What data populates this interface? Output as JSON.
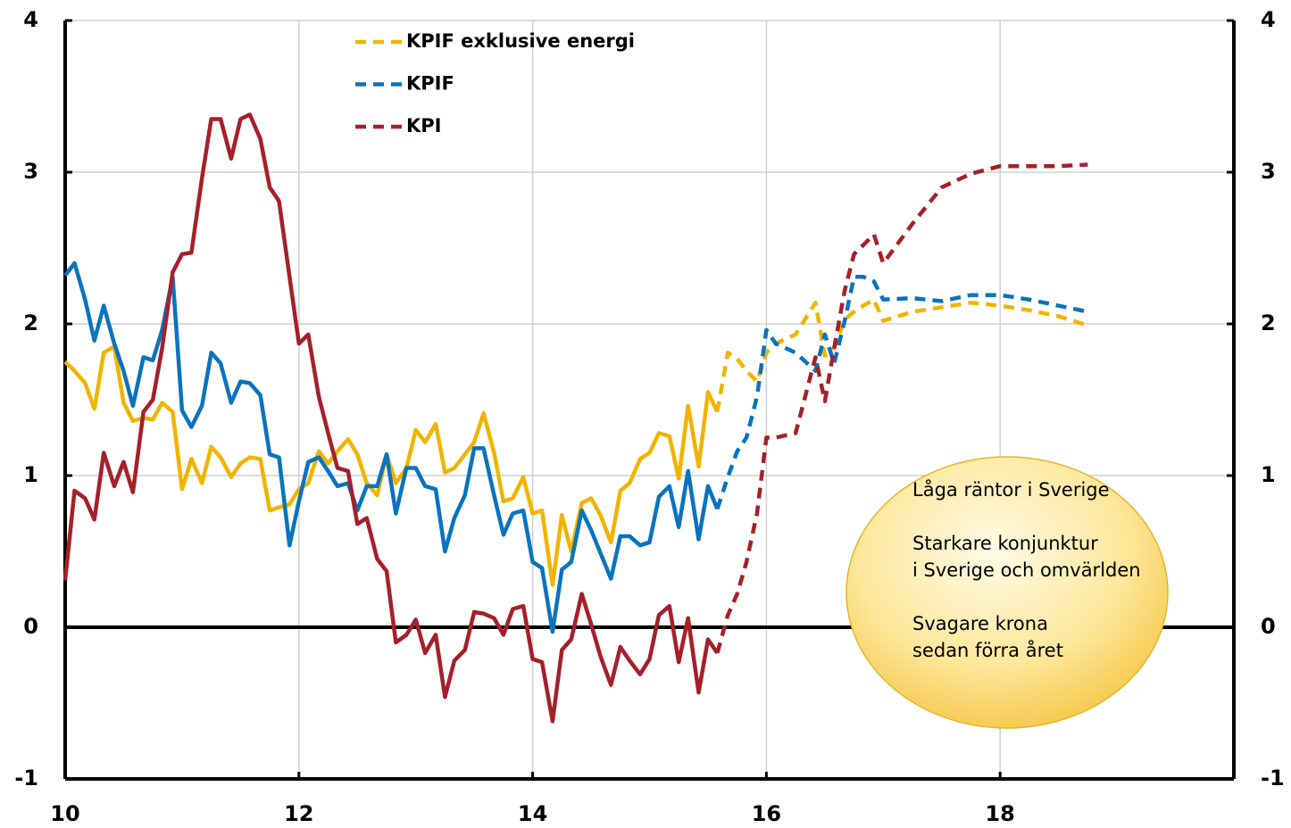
{
  "chart_data": {
    "type": "line",
    "xlim": [
      10,
      20
    ],
    "xticks": [
      10,
      12,
      14,
      16,
      18
    ],
    "ylim": [
      -1,
      4
    ],
    "yticks": [
      -1,
      0,
      1,
      2,
      3,
      4
    ],
    "y2lim": [
      -1,
      4
    ],
    "y2ticks": [
      -1,
      0,
      1,
      2,
      3,
      4
    ],
    "grid": true,
    "dashed_from": 15.58,
    "x": [
      10,
      10.08,
      10.17,
      10.25,
      10.33,
      10.42,
      10.5,
      10.58,
      10.67,
      10.75,
      10.83,
      10.92,
      11,
      11.08,
      11.17,
      11.25,
      11.33,
      11.42,
      11.5,
      11.58,
      11.67,
      11.75,
      11.83,
      11.92,
      12,
      12.08,
      12.17,
      12.25,
      12.33,
      12.42,
      12.5,
      12.58,
      12.67,
      12.75,
      12.83,
      12.92,
      13,
      13.08,
      13.17,
      13.25,
      13.33,
      13.42,
      13.5,
      13.58,
      13.67,
      13.75,
      13.83,
      13.92,
      14,
      14.08,
      14.17,
      14.25,
      14.33,
      14.42,
      14.5,
      14.58,
      14.67,
      14.75,
      14.83,
      14.92,
      15,
      15.08,
      15.17,
      15.25,
      15.33,
      15.42,
      15.5,
      15.58,
      15.67,
      15.75,
      15.83,
      15.92,
      16,
      16.08,
      16.25,
      16.42,
      16.5,
      16.58,
      16.67,
      16.75,
      16.83,
      16.92,
      17,
      17.25,
      17.5,
      17.75,
      18,
      18.25,
      18.5,
      18.75
    ],
    "series": [
      {
        "name": "KPIF exklusive energi",
        "color": "#f0b400",
        "values": [
          1.75,
          1.69,
          1.61,
          1.44,
          1.81,
          1.85,
          1.48,
          1.36,
          1.38,
          1.37,
          1.48,
          1.42,
          0.91,
          1.11,
          0.95,
          1.19,
          1.12,
          0.99,
          1.08,
          1.12,
          1.11,
          0.77,
          0.79,
          0.81,
          0.91,
          0.95,
          1.16,
          1.08,
          1.16,
          1.24,
          1.14,
          0.95,
          0.87,
          1.14,
          0.95,
          1.05,
          1.3,
          1.22,
          1.34,
          1.02,
          1.05,
          1.14,
          1.22,
          1.41,
          1.15,
          0.83,
          0.85,
          0.99,
          0.75,
          0.77,
          0.28,
          0.74,
          0.5,
          0.82,
          0.85,
          0.74,
          0.56,
          0.9,
          0.95,
          1.11,
          1.15,
          1.28,
          1.26,
          0.98,
          1.46,
          1.06,
          1.55,
          1.42,
          1.81,
          1.77,
          1.69,
          1.62,
          1.81,
          1.87,
          1.93,
          2.14,
          1.79,
          1.84,
          2.03,
          2.08,
          2.12,
          2.16,
          2.02,
          2.08,
          2.11,
          2.14,
          2.12,
          2.09,
          2.05,
          1.99
        ]
      },
      {
        "name": "KPIF",
        "color": "#0a73be",
        "values": [
          2.32,
          2.4,
          2.16,
          1.89,
          2.12,
          1.87,
          1.69,
          1.46,
          1.78,
          1.76,
          1.96,
          2.31,
          1.43,
          1.32,
          1.46,
          1.81,
          1.74,
          1.48,
          1.62,
          1.61,
          1.53,
          1.14,
          1.12,
          0.54,
          0.83,
          1.09,
          1.12,
          1.03,
          0.93,
          0.95,
          0.77,
          0.93,
          0.93,
          1.14,
          0.75,
          1.05,
          1.05,
          0.93,
          0.91,
          0.5,
          0.72,
          0.87,
          1.18,
          1.18,
          0.87,
          0.61,
          0.75,
          0.77,
          0.43,
          0.39,
          -0.03,
          0.38,
          0.43,
          0.77,
          0.64,
          0.49,
          0.32,
          0.6,
          0.6,
          0.54,
          0.56,
          0.86,
          0.93,
          0.66,
          1.03,
          0.58,
          0.93,
          0.78,
          0.99,
          1.16,
          1.25,
          1.52,
          1.96,
          1.87,
          1.81,
          1.69,
          1.93,
          1.74,
          2.02,
          2.31,
          2.31,
          2.28,
          2.16,
          2.17,
          2.15,
          2.19,
          2.19,
          2.16,
          2.12,
          2.08
        ]
      },
      {
        "name": "KPI",
        "color": "#a5202a",
        "values": [
          0.31,
          0.9,
          0.85,
          0.71,
          1.15,
          0.93,
          1.09,
          0.89,
          1.42,
          1.5,
          1.84,
          2.34,
          2.46,
          2.47,
          2.96,
          3.35,
          3.35,
          3.09,
          3.35,
          3.38,
          3.22,
          2.9,
          2.81,
          2.31,
          1.87,
          1.93,
          1.52,
          1.28,
          1.05,
          1.03,
          0.68,
          0.72,
          0.45,
          0.37,
          -0.1,
          -0.05,
          0.05,
          -0.17,
          -0.05,
          -0.46,
          -0.22,
          -0.15,
          0.1,
          0.09,
          0.06,
          -0.05,
          0.12,
          0.14,
          -0.21,
          -0.23,
          -0.62,
          -0.15,
          -0.08,
          0.22,
          0.02,
          -0.19,
          -0.38,
          -0.13,
          -0.22,
          -0.31,
          -0.21,
          0.08,
          0.14,
          -0.23,
          0.06,
          -0.43,
          -0.08,
          -0.17,
          0.08,
          0.22,
          0.43,
          0.75,
          1.25,
          1.25,
          1.28,
          1.78,
          1.49,
          1.84,
          2.22,
          2.46,
          2.52,
          2.59,
          2.4,
          2.66,
          2.9,
          2.99,
          3.04,
          3.04,
          3.04,
          3.05
        ]
      }
    ],
    "annotation": [
      [
        "Låga räntor i Sverige"
      ],
      [
        "Starkare konjunktur",
        "i Sverige och omvärlden"
      ],
      [
        "Svagare krona",
        "sedan förra året"
      ]
    ]
  }
}
